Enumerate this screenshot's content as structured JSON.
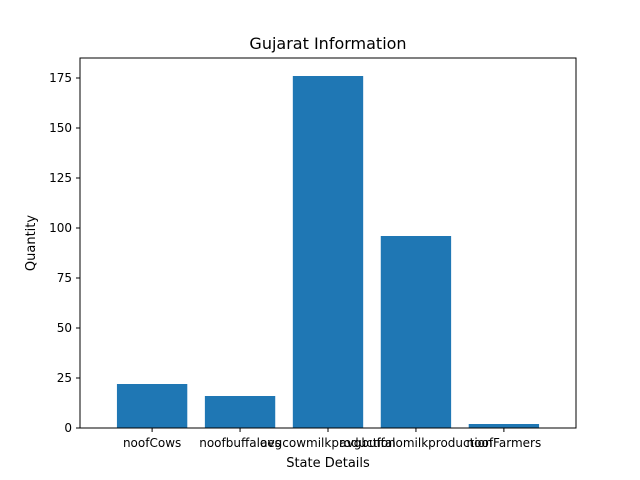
{
  "chart_data": {
    "type": "bar",
    "title": "Gujarat Information",
    "xlabel": "State Details",
    "ylabel": "Quantity",
    "categories": [
      "noofCows",
      "noofbuffaloes",
      "avgcowmilkproduction",
      "avgbuffalomilkproduction",
      "noofFarmers"
    ],
    "values": [
      22,
      16,
      176,
      96,
      2
    ],
    "ylim": [
      0,
      185
    ],
    "yticks": [
      0,
      25,
      50,
      75,
      100,
      125,
      150,
      175
    ],
    "bar_color": "#1f77b4",
    "grid": false,
    "legend": "none"
  }
}
